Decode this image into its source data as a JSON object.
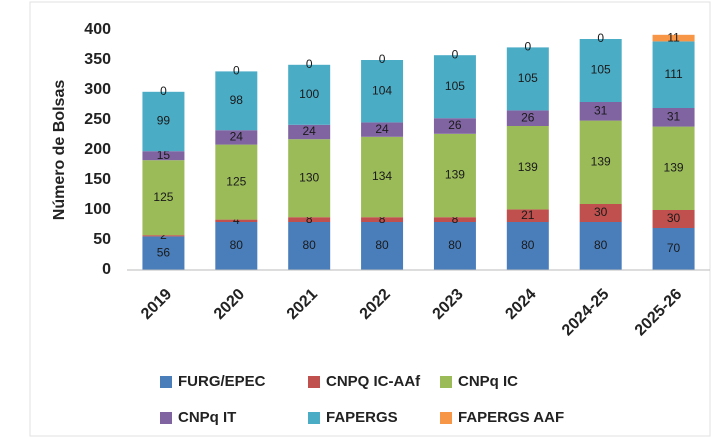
{
  "chart_data": {
    "type": "stacked_bar",
    "y_label": "Número de Bolsas",
    "categories": [
      "2019",
      "2020",
      "2021",
      "2022",
      "2023",
      "2024",
      "2024-25",
      "2025-26"
    ],
    "series": [
      {
        "name": "FURG/EPEC",
        "color": "#4a7ebb",
        "values": [
          56,
          80,
          80,
          80,
          80,
          80,
          80,
          70
        ]
      },
      {
        "name": "CNPQ IC-AAf",
        "color": "#c0504d",
        "values": [
          2,
          4,
          8,
          8,
          8,
          21,
          30,
          30
        ]
      },
      {
        "name": "CNPq IC",
        "color": "#9bbb59",
        "values": [
          125,
          125,
          130,
          134,
          139,
          139,
          139,
          139
        ]
      },
      {
        "name": "CNPq IT",
        "color": "#8064a2",
        "values": [
          15,
          24,
          24,
          24,
          26,
          26,
          31,
          31
        ]
      },
      {
        "name": "FAPERGS",
        "color": "#4bacc6",
        "values": [
          99,
          98,
          100,
          104,
          105,
          105,
          105,
          111
        ]
      },
      {
        "name": "FAPERGS AAF",
        "color": "#f79646",
        "values": [
          0,
          0,
          0,
          0,
          0,
          0,
          0,
          11
        ]
      }
    ],
    "ylim": [
      0,
      400
    ],
    "yticks": [
      0,
      50,
      100,
      150,
      200,
      250,
      300,
      350,
      400
    ],
    "grid": false,
    "legend": "bottom"
  }
}
